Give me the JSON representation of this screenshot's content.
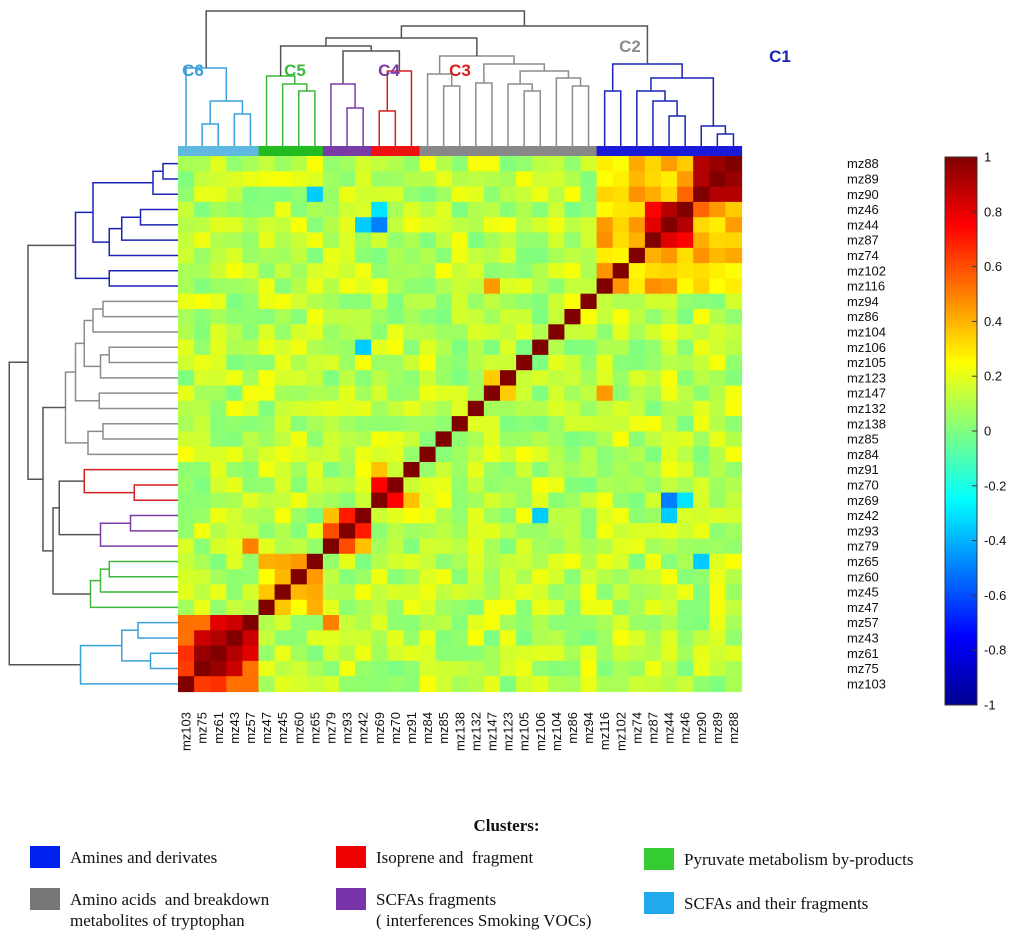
{
  "chart_data": {
    "type": "heatmap",
    "title": "",
    "rows": [
      "mz88",
      "mz89",
      "mz90",
      "mz46",
      "mz44",
      "mz87",
      "mz74",
      "mz102",
      "mz116",
      "mz94",
      "mz86",
      "mz104",
      "mz106",
      "mz105",
      "mz123",
      "mz147",
      "mz132",
      "mz138",
      "mz85",
      "mz84",
      "mz91",
      "mz70",
      "mz69",
      "mz42",
      "mz93",
      "mz79",
      "mz65",
      "mz60",
      "mz45",
      "mz47",
      "mz57",
      "mz43",
      "mz61",
      "mz75",
      "mz103"
    ],
    "columns": [
      "mz103",
      "mz75",
      "mz61",
      "mz43",
      "mz57",
      "mz47",
      "mz45",
      "mz60",
      "mz65",
      "mz79",
      "mz93",
      "mz42",
      "mz69",
      "mz70",
      "mz91",
      "mz84",
      "mz85",
      "mz138",
      "mz132",
      "mz147",
      "mz123",
      "mz105",
      "mz106",
      "mz104",
      "mz86",
      "mz94",
      "mz116",
      "mz102",
      "mz74",
      "mz87",
      "mz44",
      "mz46",
      "mz90",
      "mz89",
      "mz88"
    ],
    "value_range": [
      -1,
      1
    ],
    "colorbar": {
      "ticks": [
        "1",
        "0.8",
        "0.6",
        "0.4",
        "0.2",
        "0",
        "-0.2",
        "-0.4",
        "-0.6",
        "-0.8",
        "-1"
      ],
      "colormap": "jet"
    },
    "cluster_labels": [
      {
        "name": "C6",
        "color": "#3aa0d8"
      },
      {
        "name": "C5",
        "color": "#3cb83c"
      },
      {
        "name": "C4",
        "color": "#7a3ba8"
      },
      {
        "name": "C3",
        "color": "#d42020"
      },
      {
        "name": "C2",
        "color": "#8c8c8c"
      },
      {
        "name": "C1",
        "color": "#1a24b8"
      }
    ],
    "cluster_members": {
      "C1": [
        "mz116",
        "mz102",
        "mz74",
        "mz87",
        "mz44",
        "mz46",
        "mz90",
        "mz89",
        "mz88"
      ],
      "C2": [
        "mz84",
        "mz85",
        "mz138",
        "mz132",
        "mz147",
        "mz123",
        "mz105",
        "mz106",
        "mz104",
        "mz86",
        "mz94"
      ],
      "C3": [
        "mz69",
        "mz70",
        "mz91"
      ],
      "C4": [
        "mz79",
        "mz93",
        "mz42"
      ],
      "C5": [
        "mz47",
        "mz45",
        "mz60",
        "mz65"
      ],
      "C6": [
        "mz103",
        "mz75",
        "mz61",
        "mz43",
        "mz57"
      ]
    },
    "strong_pairs": [
      {
        "a": "mz89",
        "b": "mz88",
        "value": 0.95
      },
      {
        "a": "mz90",
        "b": "mz89",
        "value": 0.9
      },
      {
        "a": "mz90",
        "b": "mz88",
        "value": 0.9
      },
      {
        "a": "mz46",
        "b": "mz44",
        "value": 0.9
      },
      {
        "a": "mz87",
        "b": "mz44",
        "value": 0.8
      },
      {
        "a": "mz87",
        "b": "mz46",
        "value": 0.75
      },
      {
        "a": "mz90",
        "b": "mz46",
        "value": 0.55
      },
      {
        "a": "mz61",
        "b": "mz43",
        "value": 0.9
      },
      {
        "a": "mz61",
        "b": "mz75",
        "value": 0.95
      },
      {
        "a": "mz43",
        "b": "mz57",
        "value": 0.85
      },
      {
        "a": "mz43",
        "b": "mz75",
        "value": 0.85
      },
      {
        "a": "mz57",
        "b": "mz61",
        "value": 0.8
      },
      {
        "a": "mz70",
        "b": "mz69",
        "value": 0.75
      },
      {
        "a": "mz93",
        "b": "mz42",
        "value": 0.7
      },
      {
        "a": "mz93",
        "b": "mz79",
        "value": 0.6
      },
      {
        "a": "mz79",
        "b": "mz57",
        "value": 0.5
      },
      {
        "a": "mz60",
        "b": "mz65",
        "value": 0.45
      },
      {
        "a": "mz147",
        "b": "mz123",
        "value": 0.35
      },
      {
        "a": "mz116",
        "b": "mz147",
        "value": 0.45
      }
    ],
    "negative_pairs": [
      {
        "a": "mz69",
        "b": "mz44",
        "value": -0.5
      },
      {
        "a": "mz46",
        "b": "mz69",
        "value": -0.3
      },
      {
        "a": "mz90",
        "b": "mz65",
        "value": -0.35
      },
      {
        "a": "mz42",
        "b": "mz106",
        "value": -0.35
      },
      {
        "a": "mz44",
        "b": "mz42",
        "value": -0.35
      }
    ]
  },
  "legend": {
    "title": "Clusters:",
    "items": [
      {
        "label": "Amines and derivates",
        "color": "#0022ee"
      },
      {
        "label": "Isoprene and  fragment",
        "color": "#ee0000"
      },
      {
        "label": "Pyruvate metabolism by-products",
        "color": "#33cc33"
      },
      {
        "label": "Amino acids  and breakdown\nmetabolites of tryptophan",
        "color": "#777777"
      },
      {
        "label": "SCFAs fragments\n( interferences Smoking VOCs)",
        "color": "#7733aa"
      },
      {
        "label": "SCFAs and their fragments",
        "color": "#22aaee"
      }
    ]
  }
}
